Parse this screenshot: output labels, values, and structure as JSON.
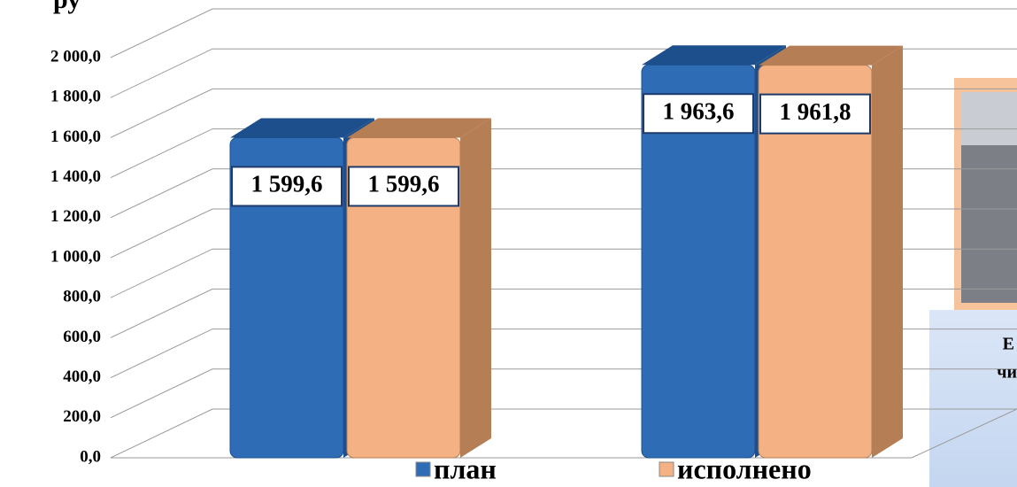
{
  "chart_data": {
    "type": "bar3d",
    "title": "ру",
    "categories": [
      null,
      null
    ],
    "series": [
      {
        "name": "план",
        "color": "#2e6db5",
        "side_color": "#1d4f8c",
        "values": [
          1599.6,
          1963.6
        ],
        "value_labels": [
          "1 599,6",
          "1 963,6"
        ]
      },
      {
        "name": "исполнено",
        "color": "#f4b183",
        "side_color": "#b57e55",
        "values": [
          1599.6,
          1961.8
        ],
        "value_labels": [
          "1 599,6",
          "1 961,8"
        ]
      }
    ],
    "ylim": [
      0,
      2000
    ],
    "yticks": [
      {
        "value": 0,
        "label": "0,0"
      },
      {
        "value": 200,
        "label": "200,0"
      },
      {
        "value": 400,
        "label": "400,0"
      },
      {
        "value": 600,
        "label": "600,0"
      },
      {
        "value": 800,
        "label": "800,0"
      },
      {
        "value": 1000,
        "label": "1 000,0"
      },
      {
        "value": 1200,
        "label": "1 200,0"
      },
      {
        "value": 1400,
        "label": "1 400,0"
      },
      {
        "value": 1600,
        "label": "1 600,0"
      },
      {
        "value": 1800,
        "label": "1 800,0"
      },
      {
        "value": 2000,
        "label": "2 000,0"
      }
    ],
    "grid": true,
    "annotations": [
      "Е",
      "чи"
    ]
  }
}
